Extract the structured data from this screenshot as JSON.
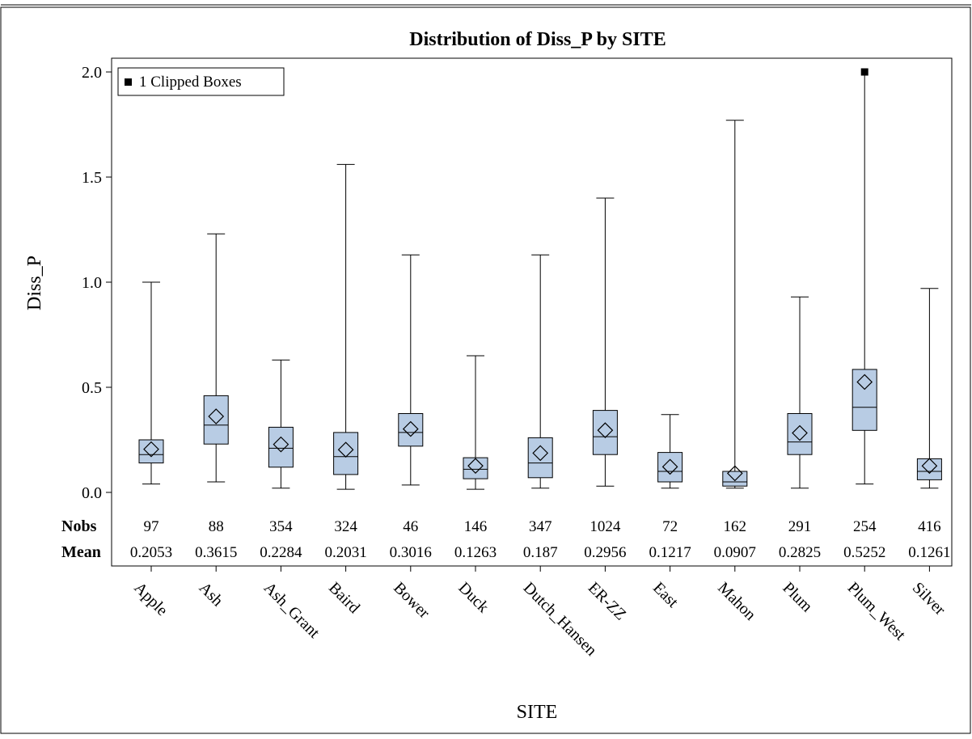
{
  "chart_data": {
    "type": "box",
    "title": "Distribution of Diss_P by SITE",
    "xlabel": "SITE",
    "ylabel": "Diss_P",
    "ylim": [
      0,
      2.0
    ],
    "yticks": [
      "0.0",
      "0.5",
      "1.0",
      "1.5",
      "2.0"
    ],
    "ytick_values": [
      0,
      0.5,
      1.0,
      1.5,
      2.0
    ],
    "legend": {
      "label": "1 Clipped Boxes",
      "position": "top-left"
    },
    "table_labels": {
      "nobs": "Nobs",
      "mean": "Mean"
    },
    "box_fill": "#b8cce4",
    "categories": [
      "Apple",
      "Ash",
      "Ash_Grant",
      "Baird",
      "Bower",
      "Duck",
      "Dutch_Hansen",
      "ER-ZZ",
      "East",
      "Mahon",
      "Plum",
      "Plum_West",
      "Silver"
    ],
    "nobs": [
      "97",
      "88",
      "354",
      "324",
      "46",
      "146",
      "347",
      "1024",
      "72",
      "162",
      "291",
      "254",
      "416"
    ],
    "mean_labels": [
      "0.2053",
      "0.3615",
      "0.2284",
      "0.2031",
      "0.3016",
      "0.1263",
      "0.187",
      "0.2956",
      "0.1217",
      "0.0907",
      "0.2825",
      "0.5252",
      "0.1261"
    ],
    "boxes": [
      {
        "min": 0.04,
        "q1": 0.14,
        "median": 0.18,
        "q3": 0.25,
        "max": 1.0,
        "mean": 0.2053,
        "clipped": false
      },
      {
        "min": 0.05,
        "q1": 0.23,
        "median": 0.32,
        "q3": 0.46,
        "max": 1.23,
        "mean": 0.3615,
        "clipped": false
      },
      {
        "min": 0.02,
        "q1": 0.12,
        "median": 0.21,
        "q3": 0.31,
        "max": 0.63,
        "mean": 0.2284,
        "clipped": false
      },
      {
        "min": 0.015,
        "q1": 0.085,
        "median": 0.17,
        "q3": 0.285,
        "max": 1.56,
        "mean": 0.2031,
        "clipped": false
      },
      {
        "min": 0.035,
        "q1": 0.22,
        "median": 0.285,
        "q3": 0.375,
        "max": 1.13,
        "mean": 0.3016,
        "clipped": false
      },
      {
        "min": 0.015,
        "q1": 0.065,
        "median": 0.11,
        "q3": 0.165,
        "max": 0.65,
        "mean": 0.1263,
        "clipped": false
      },
      {
        "min": 0.02,
        "q1": 0.07,
        "median": 0.14,
        "q3": 0.26,
        "max": 1.13,
        "mean": 0.187,
        "clipped": false
      },
      {
        "min": 0.03,
        "q1": 0.18,
        "median": 0.265,
        "q3": 0.39,
        "max": 1.4,
        "mean": 0.2956,
        "clipped": false
      },
      {
        "min": 0.02,
        "q1": 0.05,
        "median": 0.1,
        "q3": 0.19,
        "max": 0.37,
        "mean": 0.1217,
        "clipped": false
      },
      {
        "min": 0.02,
        "q1": 0.03,
        "median": 0.05,
        "q3": 0.1,
        "max": 1.77,
        "mean": 0.0907,
        "clipped": false
      },
      {
        "min": 0.02,
        "q1": 0.18,
        "median": 0.24,
        "q3": 0.375,
        "max": 0.93,
        "mean": 0.2825,
        "clipped": false
      },
      {
        "min": 0.04,
        "q1": 0.295,
        "median": 0.405,
        "q3": 0.585,
        "max": 2.0,
        "mean": 0.5252,
        "clipped": true
      },
      {
        "min": 0.02,
        "q1": 0.06,
        "median": 0.1,
        "q3": 0.16,
        "max": 0.97,
        "mean": 0.1261,
        "clipped": false
      }
    ]
  }
}
